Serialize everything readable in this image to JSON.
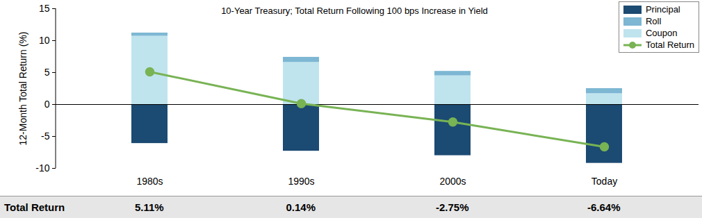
{
  "chart_data": {
    "type": "bar",
    "title": "10-Year Treasury; Total Return Following 100 bps Increase in Yield",
    "y_label": "12-Month Total Return (%)",
    "categories": [
      "1980s",
      "1990s",
      "2000s",
      "Today"
    ],
    "stacked": true,
    "legend": "top-right",
    "grid": false,
    "ylim": [
      -10,
      15
    ],
    "yticks": [
      -10,
      -5,
      0,
      5,
      10,
      15
    ],
    "series": [
      {
        "name": "Principal",
        "type": "bar",
        "color": "#1b4a72",
        "values": [
          -6.1,
          -7.3,
          -8.0,
          -9.2
        ]
      },
      {
        "name": "Roll",
        "type": "bar",
        "color": "#7db7d3",
        "values": [
          0.5,
          0.8,
          0.7,
          0.8
        ]
      },
      {
        "name": "Coupon",
        "type": "bar",
        "color": "#bfe4ee",
        "values": [
          10.7,
          6.6,
          4.5,
          1.7
        ]
      },
      {
        "name": "Total Return",
        "type": "line",
        "color": "#78b354",
        "marker": "circle",
        "values": [
          5.11,
          0.14,
          -2.75,
          -6.64
        ],
        "value_labels": [
          "5.11%",
          "0.14%",
          "-2.75%",
          "-6.64%"
        ]
      }
    ]
  }
}
